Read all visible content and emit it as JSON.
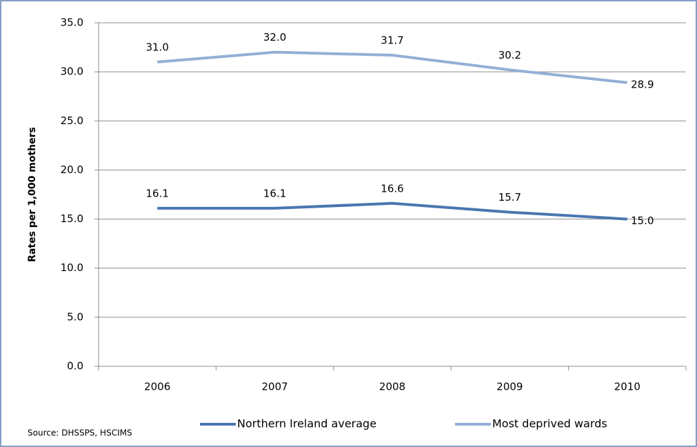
{
  "chart_data": {
    "type": "line",
    "y_label": "Rates per 1,000 mothers",
    "source": "Source: DHSSPS, HSCIMS",
    "categories": [
      "2006",
      "2007",
      "2008",
      "2009",
      "2010"
    ],
    "series": [
      {
        "name": "Northern Ireland average",
        "color": "#4a76b0",
        "values": [
          16.1,
          16.1,
          16.6,
          15.7,
          15.0
        ],
        "value_labels": [
          "16.1",
          "16.1",
          "16.6",
          "15.7",
          "15.0"
        ]
      },
      {
        "name": "Most deprived wards",
        "color": "#93afd6",
        "values": [
          31.0,
          32.0,
          31.7,
          30.2,
          28.9
        ],
        "value_labels": [
          "31.0",
          "32.0",
          "31.7",
          "30.2",
          "28.9"
        ]
      }
    ],
    "ylim": [
      0,
      35
    ],
    "yticks": [
      {
        "value": 0,
        "label": "0.0"
      },
      {
        "value": 5,
        "label": "5.0"
      },
      {
        "value": 10,
        "label": "10.0"
      },
      {
        "value": 15,
        "label": "15.0"
      },
      {
        "value": 20,
        "label": "20.0"
      },
      {
        "value": 25,
        "label": "25.0"
      },
      {
        "value": 30,
        "label": "30.0"
      },
      {
        "value": 35,
        "label": "35.0"
      }
    ],
    "grid": true
  }
}
